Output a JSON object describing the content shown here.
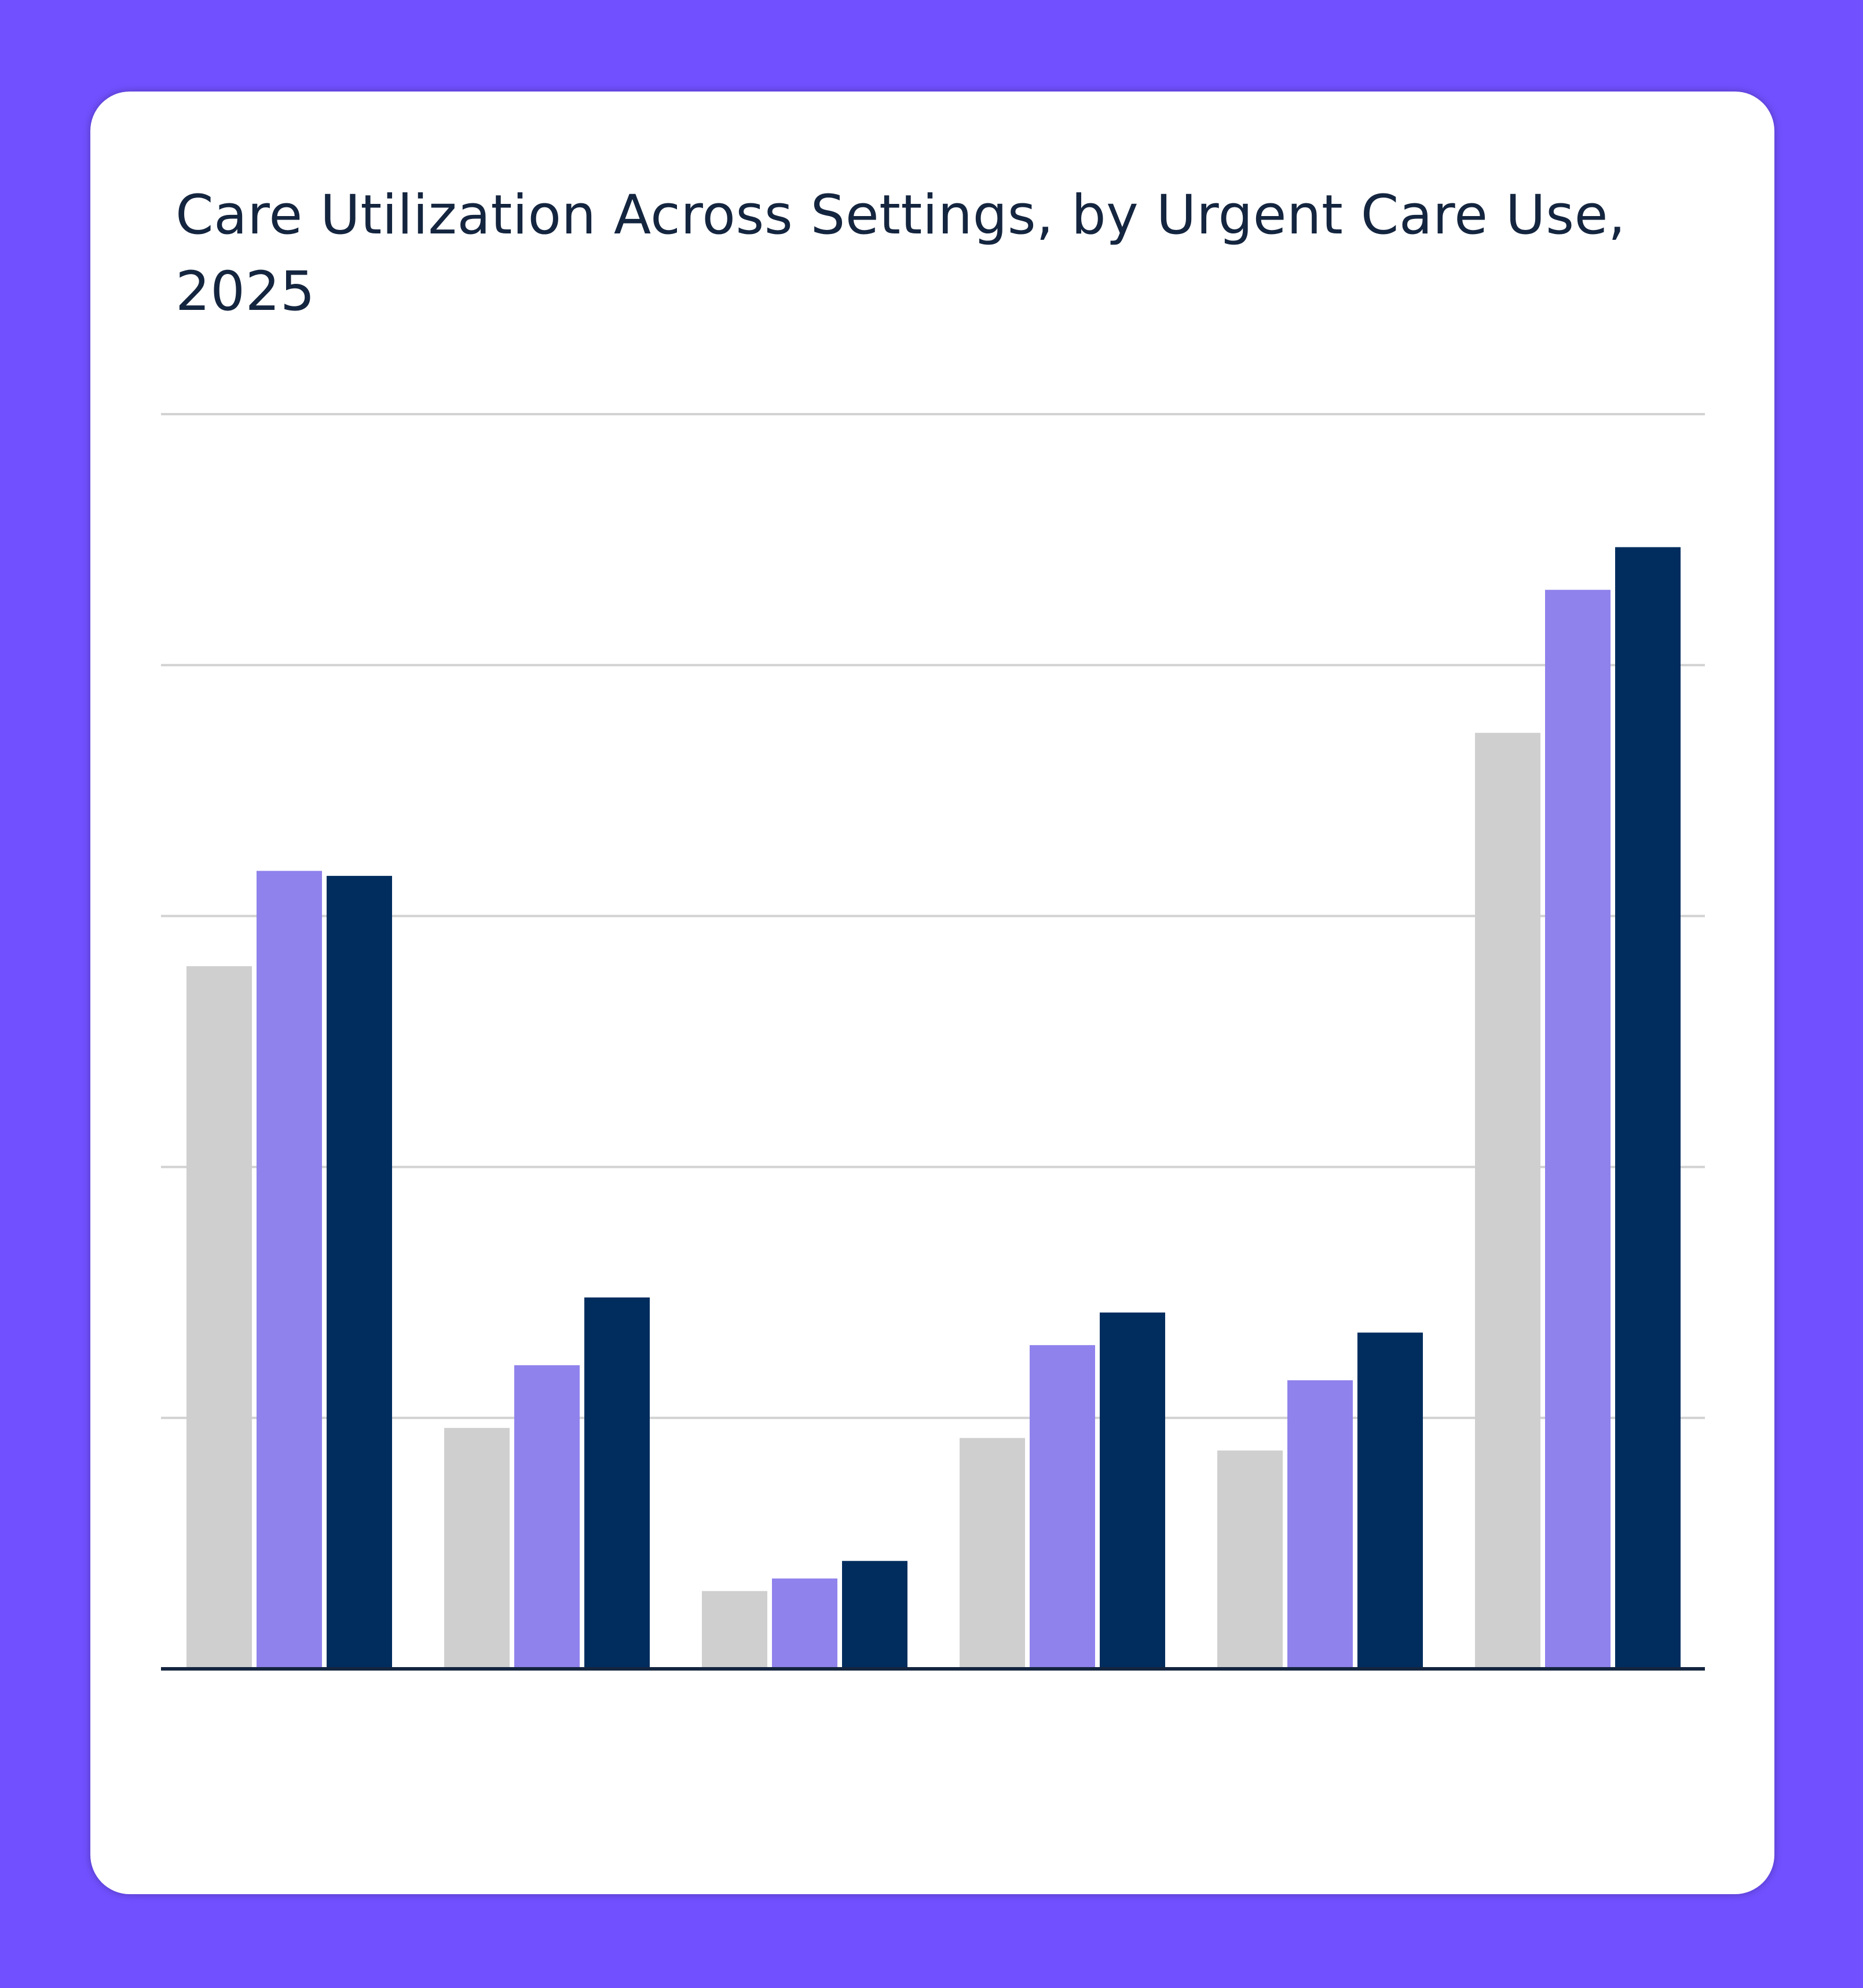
{
  "title": "Care Utilization Across Settings, by Urgent Care Use, 2025",
  "colors": {
    "background": "#7150FF",
    "card": "#FFFFFF",
    "gridline": "#D2D2D2",
    "axis": "#14253F",
    "title": "#14253F"
  },
  "chart_data": {
    "type": "bar",
    "title": "Care Utilization Across Settings, by Urgent Care Use, 2025",
    "categories": [
      "",
      "",
      "",
      "",
      "",
      ""
    ],
    "ylim": [
      0,
      5
    ],
    "grid": true,
    "series": [
      {
        "color": "#CFCFCF",
        "values": [
          2.8,
          0.96,
          0.31,
          0.92,
          0.87,
          3.73
        ]
      },
      {
        "color": "#8F82EC",
        "values": [
          3.18,
          1.21,
          0.36,
          1.29,
          1.15,
          4.3
        ]
      },
      {
        "color": "#002D5E",
        "values": [
          3.16,
          1.48,
          0.43,
          1.42,
          1.34,
          4.47
        ]
      }
    ]
  }
}
